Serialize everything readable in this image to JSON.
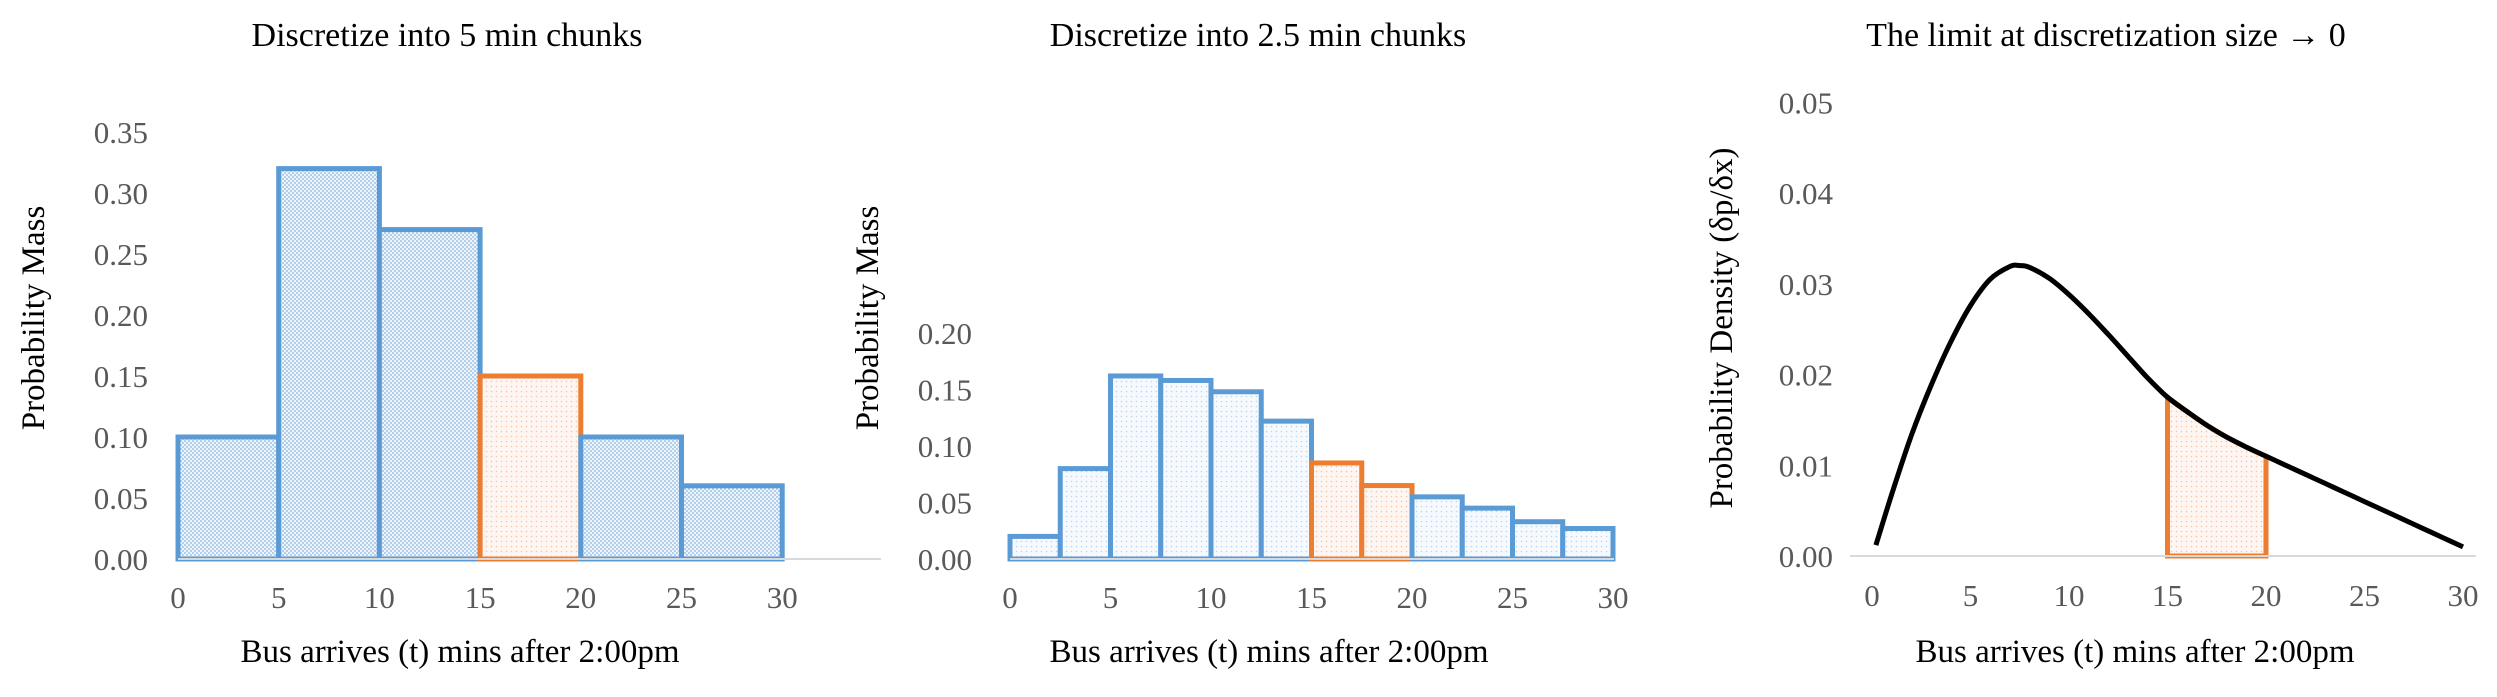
{
  "colors": {
    "blue": "#5b9bd5",
    "orange": "#ed7d31",
    "axis": "#d9d9d9",
    "curve": "#000000"
  },
  "chart_data": [
    {
      "type": "bar",
      "title": "Discretize into 5 min chunks",
      "xlabel": "Bus arrives (t) mins after 2:00pm",
      "ylabel": "Probability Mass",
      "bin_width": 5,
      "bins": [
        {
          "start": 0,
          "end": 5,
          "value": 0.1,
          "highlight": false
        },
        {
          "start": 5,
          "end": 10,
          "value": 0.32,
          "highlight": false
        },
        {
          "start": 10,
          "end": 15,
          "value": 0.27,
          "highlight": false
        },
        {
          "start": 15,
          "end": 20,
          "value": 0.15,
          "highlight": true
        },
        {
          "start": 20,
          "end": 25,
          "value": 0.1,
          "highlight": false
        },
        {
          "start": 25,
          "end": 30,
          "value": 0.06,
          "highlight": false
        }
      ],
      "xticks": [
        "0",
        "5",
        "10",
        "15",
        "20",
        "25",
        "30"
      ],
      "yticks": [
        "0.00",
        "0.05",
        "0.10",
        "0.15",
        "0.20",
        "0.25",
        "0.30",
        "0.35"
      ],
      "xlim": [
        0,
        35
      ],
      "ylim": [
        0,
        0.35
      ]
    },
    {
      "type": "bar",
      "title": "Discretize into 2.5 min chunks",
      "xlabel": "Bus arrives (t) mins after 2:00pm",
      "ylabel": "Probability Mass",
      "bin_width": 2.5,
      "bins": [
        {
          "start": 0,
          "end": 2.5,
          "value": 0.02,
          "highlight": false
        },
        {
          "start": 2.5,
          "end": 5,
          "value": 0.08,
          "highlight": false
        },
        {
          "start": 5,
          "end": 7.5,
          "value": 0.162,
          "highlight": false
        },
        {
          "start": 7.5,
          "end": 10,
          "value": 0.158,
          "highlight": false
        },
        {
          "start": 10,
          "end": 12.5,
          "value": 0.148,
          "highlight": false
        },
        {
          "start": 12.5,
          "end": 15,
          "value": 0.122,
          "highlight": false
        },
        {
          "start": 15,
          "end": 17.5,
          "value": 0.085,
          "highlight": true
        },
        {
          "start": 17.5,
          "end": 20,
          "value": 0.065,
          "highlight": true
        },
        {
          "start": 20,
          "end": 22.5,
          "value": 0.055,
          "highlight": false
        },
        {
          "start": 22.5,
          "end": 25,
          "value": 0.045,
          "highlight": false
        },
        {
          "start": 25,
          "end": 27.5,
          "value": 0.033,
          "highlight": false
        },
        {
          "start": 27.5,
          "end": 30,
          "value": 0.027,
          "highlight": false
        }
      ],
      "xticks": [
        "0",
        "5",
        "10",
        "15",
        "20",
        "25",
        "30"
      ],
      "yticks": [
        "0.00",
        "0.05",
        "0.10",
        "0.15",
        "0.20"
      ],
      "xlim": [
        0,
        30
      ],
      "ylim": [
        0,
        0.2
      ]
    },
    {
      "type": "line",
      "title": "The limit at discretization size → 0",
      "xlabel": "Bus arrives (t) mins after 2:00pm",
      "ylabel": "Probability Density (δp/δx)",
      "x": [
        0.2,
        1,
        2,
        3,
        4,
        5,
        6,
        7,
        7.5,
        8,
        9,
        10,
        11,
        12,
        13,
        14,
        15,
        16,
        17,
        18,
        19,
        20,
        21,
        22,
        23,
        24,
        25,
        26,
        27,
        28,
        29,
        30
      ],
      "y": [
        0.0012,
        0.0068,
        0.0133,
        0.0188,
        0.0236,
        0.0276,
        0.0305,
        0.0319,
        0.032,
        0.0318,
        0.0306,
        0.0288,
        0.0267,
        0.0244,
        0.022,
        0.0196,
        0.0175,
        0.0159,
        0.0144,
        0.0131,
        0.012,
        0.011,
        0.01,
        0.009,
        0.008,
        0.007,
        0.006,
        0.005,
        0.004,
        0.003,
        0.002,
        0.001
      ],
      "shaded_interval": [
        15,
        20
      ],
      "xticks": [
        "0",
        "5",
        "10",
        "15",
        "20",
        "25",
        "30"
      ],
      "yticks": [
        "0.00",
        "0.01",
        "0.02",
        "0.03",
        "0.04",
        "0.05"
      ],
      "xlim": [
        -1,
        30.5
      ],
      "ylim": [
        0,
        0.05
      ]
    }
  ]
}
